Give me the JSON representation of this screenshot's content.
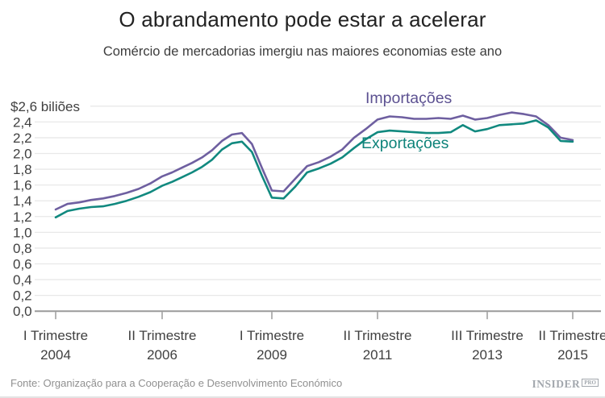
{
  "header": {
    "title": "O abrandamento pode estar a acelerar",
    "subtitle": "Comércio de mercadorias imergiu nas maiores economias este ano"
  },
  "chart_data": {
    "type": "line",
    "frequency": "quarterly",
    "x_start": "I Trimestre 2004",
    "x_end": "II Trimestre 2015",
    "ylim": [
      0,
      2.6
    ],
    "y_tick_step": 0.2,
    "grid": true,
    "legend_position": "inline-labels",
    "y_top_label": "$2,6 biliões",
    "y_tick_labels": [
      "0,0",
      "0,2",
      "0,4",
      "0,6",
      "0,8",
      "1,0",
      "1,2",
      "1,4",
      "1,6",
      "1,8",
      "2,0",
      "2,2",
      "2,4"
    ],
    "x_ticks": [
      {
        "line1": "I Trimestre",
        "line2": "2004",
        "index": 0
      },
      {
        "line1": "II Trimestre",
        "line2": "2006",
        "index": 9
      },
      {
        "line1": "I Trimestre",
        "line2": "2009",
        "index": 20
      },
      {
        "line1": "II Trimestre",
        "line2": "2011",
        "index": 29
      },
      {
        "line1": "III Trimestre",
        "line2": "2013",
        "index": 38
      },
      {
        "line1": "II Trimestre",
        "line2": "2015",
        "index": 45
      }
    ],
    "series": [
      {
        "name": "Importações",
        "line_color": "#6e5fa0",
        "label_color": "#5c5191",
        "values": [
          1.29,
          1.36,
          1.38,
          1.41,
          1.43,
          1.46,
          1.5,
          1.55,
          1.62,
          1.71,
          1.76,
          1.82,
          1.88,
          1.95,
          2.04,
          2.16,
          2.24,
          2.26,
          2.12,
          1.82,
          1.53,
          1.52,
          1.68,
          1.84,
          1.89,
          1.96,
          2.05,
          2.2,
          2.31,
          2.43,
          2.47,
          2.46,
          2.44,
          2.44,
          2.45,
          2.44,
          2.48,
          2.43,
          2.45,
          2.49,
          2.52,
          2.5,
          2.47,
          2.36,
          2.2,
          2.17
        ]
      },
      {
        "name": "Exportações",
        "line_color": "#11897f",
        "label_color": "#0e837a",
        "values": [
          1.19,
          1.27,
          1.3,
          1.32,
          1.33,
          1.36,
          1.4,
          1.45,
          1.51,
          1.59,
          1.64,
          1.7,
          1.76,
          1.83,
          1.92,
          2.05,
          2.13,
          2.15,
          2.02,
          1.72,
          1.44,
          1.43,
          1.58,
          1.76,
          1.81,
          1.87,
          1.95,
          2.07,
          2.18,
          2.27,
          2.29,
          2.28,
          2.27,
          2.26,
          2.26,
          2.27,
          2.36,
          2.28,
          2.31,
          2.36,
          2.37,
          2.38,
          2.42,
          2.33,
          2.16,
          2.15
        ]
      }
    ]
  },
  "footer": {
    "source": "Fonte: Organização para a Cooperação e Desenvolvimento Económico",
    "brand": "INSIDER",
    "brand_badge": "PRO"
  }
}
